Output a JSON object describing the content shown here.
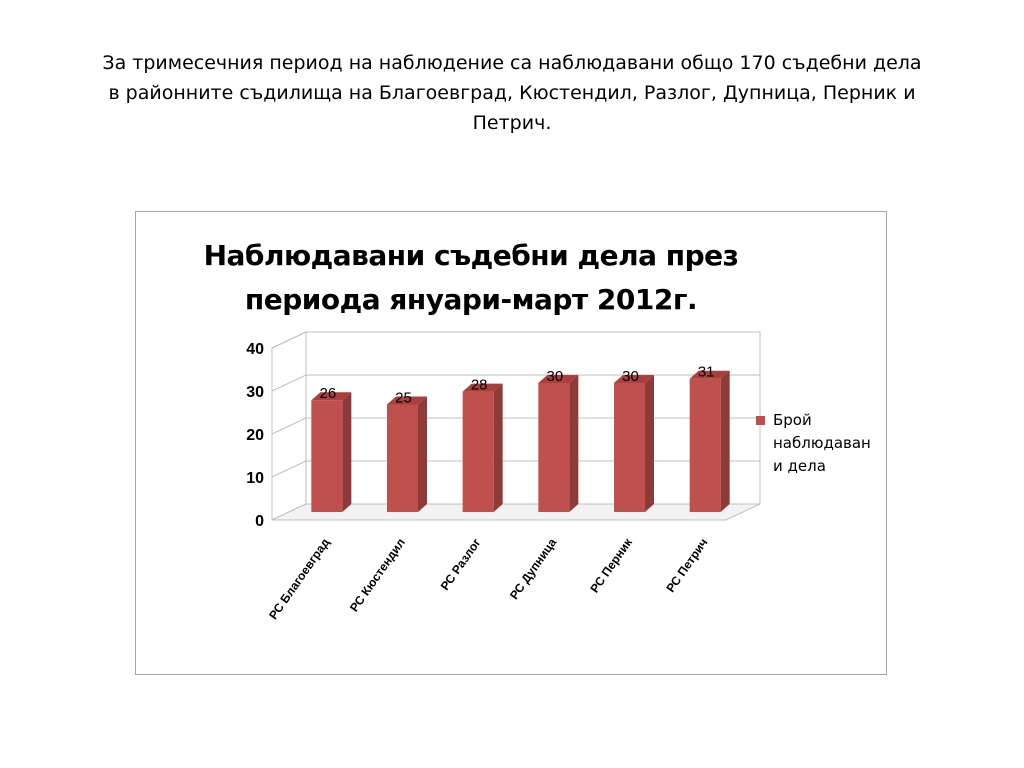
{
  "intro": {
    "line1": "За тримесечния период на наблюдение са наблюдавани общо 170 съдебни дела",
    "line2": "в районните съдилища на Благоевград, Кюстендил, Разлог, Дупница, Перник и",
    "line3": "Петрич."
  },
  "chart_data": {
    "type": "bar",
    "title_lines": [
      "Наблюдавани съдебни дела през",
      "периода януари-март 2012г."
    ],
    "categories": [
      "РС Благоевград",
      "РС Кюстендил",
      "РС Разлог",
      "РС Дупница",
      "РС Перник",
      "РС Петрич"
    ],
    "series": [
      {
        "name": "Брой наблюдаван и дела",
        "values": [
          26,
          25,
          28,
          30,
          30,
          31
        ],
        "color": "#c0504d"
      }
    ],
    "ylim": [
      0,
      40
    ],
    "yticks": [
      0,
      10,
      20,
      30,
      40
    ],
    "grid": true,
    "data_labels": true,
    "legend_position": "right",
    "style": "3d"
  },
  "legend": {
    "line1": "Брой",
    "line2": "наблюдаван",
    "line3": "и дела"
  }
}
